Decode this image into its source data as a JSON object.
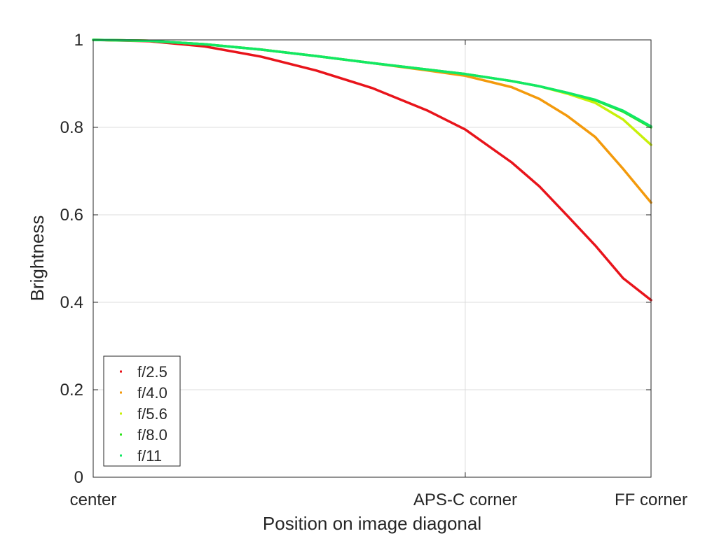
{
  "chart_data": {
    "type": "line",
    "title": "",
    "xlabel": "Position on image diagonal",
    "ylabel": "Brightness",
    "xlim": [
      0,
      1
    ],
    "ylim": [
      0,
      1
    ],
    "grid": true,
    "legend_position": "bottom-left",
    "x_ticks": [
      {
        "value": 0,
        "label": "center"
      },
      {
        "value": 0.667,
        "label": "APS-C corner"
      },
      {
        "value": 1,
        "label": "FF corner"
      }
    ],
    "y_ticks": [
      {
        "value": 0,
        "label": "0"
      },
      {
        "value": 0.2,
        "label": "0.2"
      },
      {
        "value": 0.4,
        "label": "0.4"
      },
      {
        "value": 0.6,
        "label": "0.6"
      },
      {
        "value": 0.8,
        "label": "0.8"
      },
      {
        "value": 1,
        "label": "1"
      }
    ],
    "x": [
      0,
      0.1,
      0.2,
      0.3,
      0.4,
      0.5,
      0.6,
      0.667,
      0.75,
      0.8,
      0.85,
      0.9,
      0.95,
      1.0
    ],
    "series": [
      {
        "name": "f/2.5",
        "color": "#e8141b",
        "values": [
          1.0,
          0.997,
          0.985,
          0.962,
          0.93,
          0.89,
          0.838,
          0.795,
          0.72,
          0.665,
          0.598,
          0.53,
          0.455,
          0.405
        ]
      },
      {
        "name": "f/4.0",
        "color": "#f39a0c",
        "values": [
          1.0,
          0.998,
          0.99,
          0.978,
          0.963,
          0.947,
          0.93,
          0.918,
          0.892,
          0.865,
          0.826,
          0.778,
          0.705,
          0.628
        ]
      },
      {
        "name": "f/5.6",
        "color": "#c8f00a",
        "values": [
          1.0,
          0.998,
          0.99,
          0.978,
          0.963,
          0.947,
          0.932,
          0.922,
          0.906,
          0.894,
          0.877,
          0.856,
          0.818,
          0.76
        ]
      },
      {
        "name": "f/8.0",
        "color": "#2de31b",
        "values": [
          1.0,
          0.998,
          0.99,
          0.978,
          0.963,
          0.947,
          0.932,
          0.922,
          0.906,
          0.894,
          0.879,
          0.862,
          0.836,
          0.8
        ]
      },
      {
        "name": "f/11",
        "color": "#12e866",
        "values": [
          1.0,
          0.998,
          0.99,
          0.978,
          0.963,
          0.947,
          0.932,
          0.922,
          0.906,
          0.894,
          0.879,
          0.863,
          0.838,
          0.802
        ]
      }
    ]
  }
}
